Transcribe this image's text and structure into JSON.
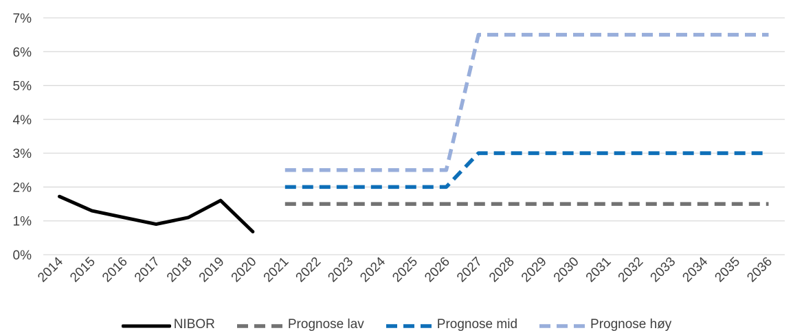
{
  "chart_data": {
    "type": "line",
    "title": "",
    "xlabel": "",
    "ylabel": "",
    "categories": [
      "2014",
      "2015",
      "2016",
      "2017",
      "2018",
      "2019",
      "2020",
      "2021",
      "2022",
      "2023",
      "2024",
      "2025",
      "2026",
      "2027",
      "2028",
      "2029",
      "2030",
      "2031",
      "2032",
      "2033",
      "2034",
      "2035",
      "2036"
    ],
    "ylim": [
      0,
      7
    ],
    "yticks": [
      "0%",
      "1%",
      "2%",
      "3%",
      "4%",
      "5%",
      "6%",
      "7%"
    ],
    "grid": true,
    "legend_position": "bottom",
    "series": [
      {
        "name": "NIBOR",
        "style": "solid",
        "color": "#000000",
        "values": [
          1.72,
          1.3,
          1.1,
          0.9,
          1.1,
          1.6,
          0.68,
          null,
          null,
          null,
          null,
          null,
          null,
          null,
          null,
          null,
          null,
          null,
          null,
          null,
          null,
          null,
          null
        ]
      },
      {
        "name": "Prognose lav",
        "style": "dashed",
        "color": "#727272",
        "values": [
          null,
          null,
          null,
          null,
          null,
          null,
          null,
          1.5,
          1.5,
          1.5,
          1.5,
          1.5,
          1.5,
          1.5,
          1.5,
          1.5,
          1.5,
          1.5,
          1.5,
          1.5,
          1.5,
          1.5,
          1.5
        ]
      },
      {
        "name": "Prognose mid",
        "style": "dashed",
        "color": "#0e6fb8",
        "values": [
          null,
          null,
          null,
          null,
          null,
          null,
          null,
          2.0,
          2.0,
          2.0,
          2.0,
          2.0,
          2.0,
          3.0,
          3.0,
          3.0,
          3.0,
          3.0,
          3.0,
          3.0,
          3.0,
          3.0,
          3.0
        ]
      },
      {
        "name": "Prognose høy",
        "style": "dashed",
        "color": "#98aedb",
        "values": [
          null,
          null,
          null,
          null,
          null,
          null,
          null,
          2.5,
          2.5,
          2.5,
          2.5,
          2.5,
          2.5,
          6.5,
          6.5,
          6.5,
          6.5,
          6.5,
          6.5,
          6.5,
          6.5,
          6.5,
          6.5
        ]
      }
    ]
  }
}
